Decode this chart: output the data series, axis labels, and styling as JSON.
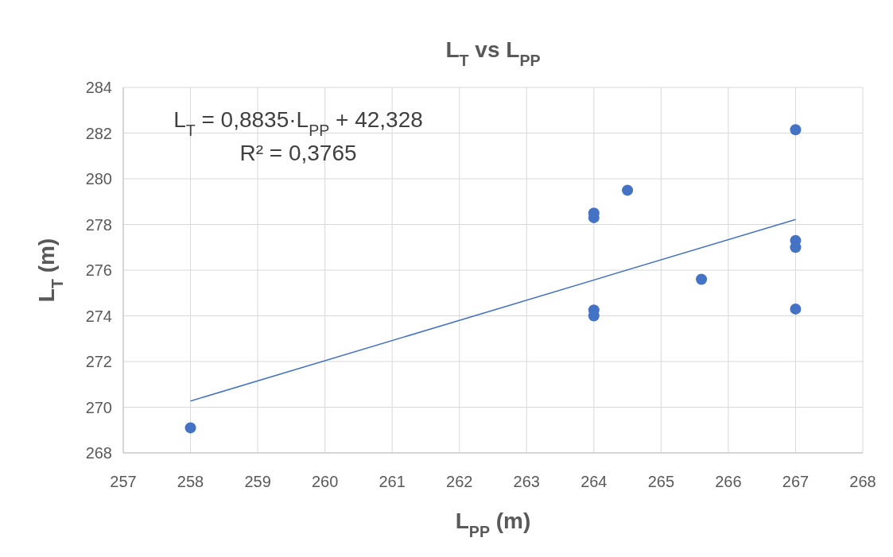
{
  "chart_data": {
    "type": "scatter",
    "title": "L$_{T}$ vs L$_{PP}$",
    "xlabel": "L$_{PP}$ (m)",
    "ylabel": "L$_{T}$ (m)",
    "xlim": [
      257,
      268
    ],
    "xticks": [
      257,
      258,
      259,
      260,
      261,
      262,
      263,
      264,
      265,
      266,
      267,
      268
    ],
    "ylim": [
      268,
      284
    ],
    "yticks": [
      268,
      270,
      272,
      274,
      276,
      278,
      280,
      282,
      284
    ],
    "grid": true,
    "marker": "circle",
    "series": [
      {
        "type": "scatter",
        "color": "#4472c4",
        "x": [
          258,
          264,
          264,
          264,
          264,
          264.5,
          265.6,
          267,
          267,
          267,
          267
        ],
        "values": [
          269.1,
          278.5,
          278.3,
          274.25,
          274.0,
          279.5,
          275.6,
          282.15,
          277.3,
          277.0,
          274.3
        ]
      },
      {
        "type": "line",
        "color": "#4472c4",
        "marker": "none",
        "x": [
          258,
          267
        ],
        "values": [
          270.27,
          278.22
        ]
      }
    ],
    "annotations": [
      "L$_{T}$ = 0,8835·L$_{PP}$ + 42,328",
      "R² = 0,3765"
    ]
  }
}
